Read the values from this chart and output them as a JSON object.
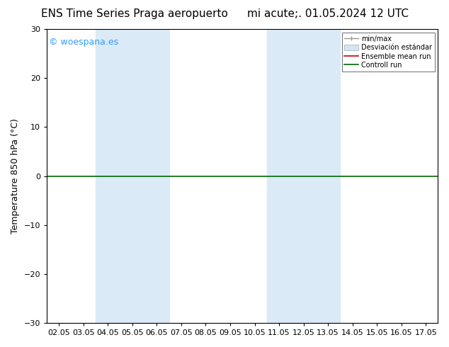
{
  "title_left": "ENS Time Series Praga aeropuerto",
  "title_right": "mi acute;. 01.05.2024 12 UTC",
  "ylabel": "Temperature 850 hPa (°C)",
  "xlim_dates": [
    "02.05",
    "03.05",
    "04.05",
    "05.05",
    "06.05",
    "07.05",
    "08.05",
    "09.05",
    "10.05",
    "11.05",
    "12.05",
    "13.05",
    "14.05",
    "15.05",
    "16.05",
    "17.05"
  ],
  "ylim": [
    -30,
    30
  ],
  "yticks": [
    -30,
    -20,
    -10,
    0,
    10,
    20,
    30
  ],
  "shaded_band_1": [
    2,
    4
  ],
  "shaded_band_2": [
    9,
    11
  ],
  "shaded_color": "#daeaf7",
  "zero_line_color": "#006600",
  "background_color": "#ffffff",
  "plot_bg_color": "#ffffff",
  "watermark": "© woespana.es",
  "watermark_color": "#3399ff",
  "legend_minmax_color": "#999999",
  "legend_std_color": "#d0e6f5",
  "legend_ens_color": "#cc0000",
  "legend_ctrl_color": "#006600",
  "figsize": [
    6.34,
    4.9
  ],
  "dpi": 100,
  "title_fontsize": 11,
  "ylabel_fontsize": 9,
  "tick_fontsize": 8,
  "legend_fontsize": 7,
  "watermark_fontsize": 9
}
